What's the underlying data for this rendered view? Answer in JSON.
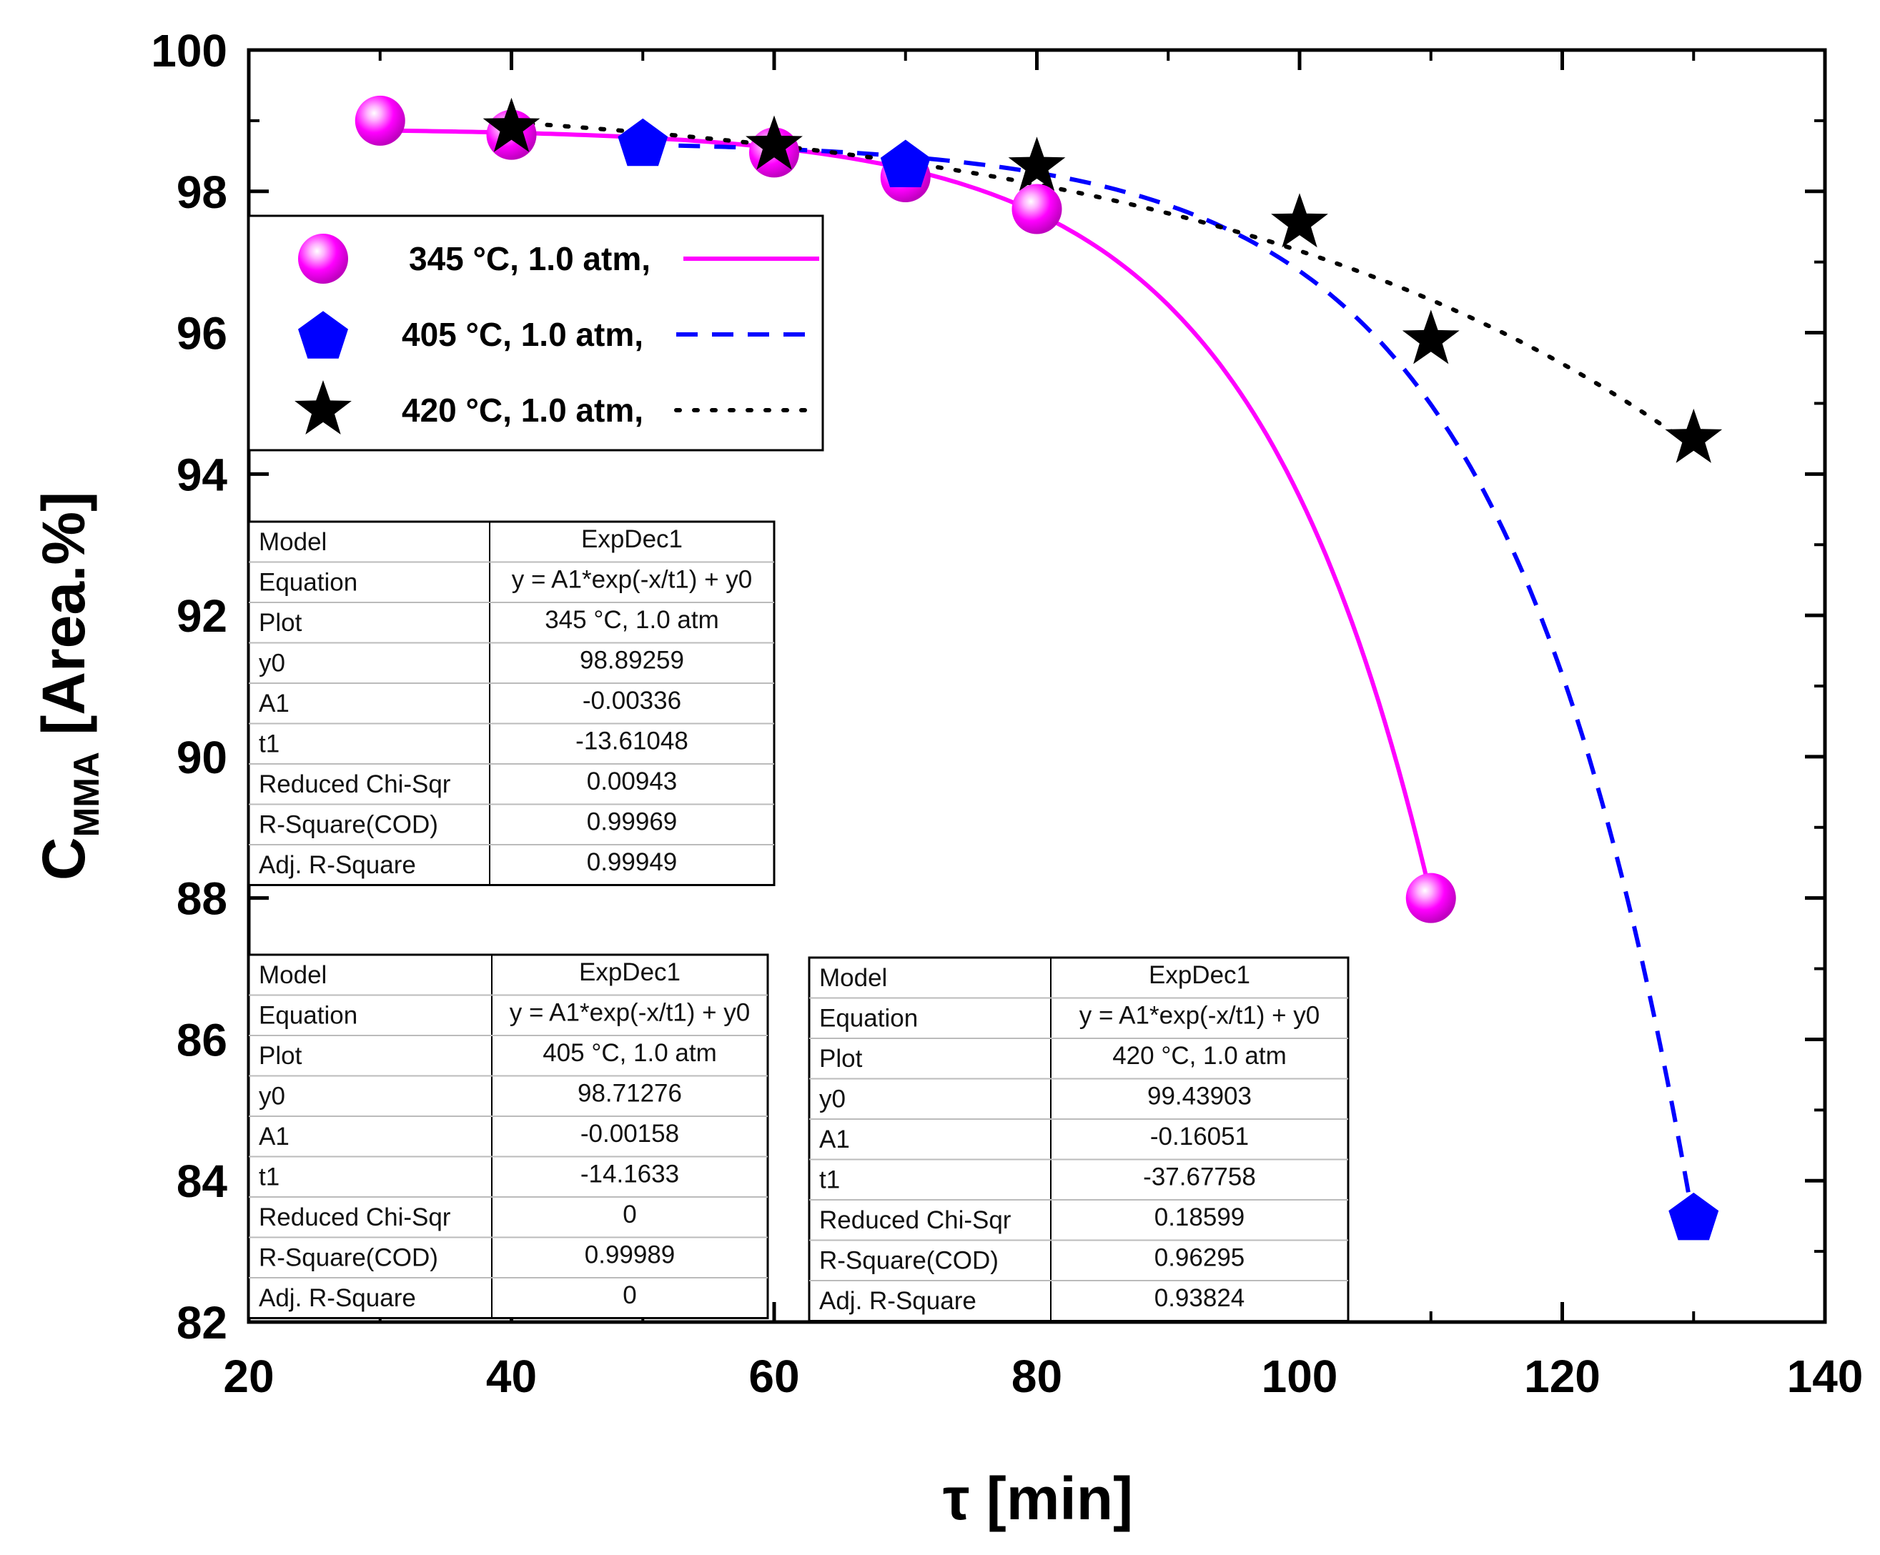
{
  "chart_data": {
    "type": "scatter",
    "xlabel": "τ [min]",
    "ylabel_main": "C",
    "ylabel_sub": "MMA",
    "ylabel_rest": " [Area.%]",
    "xlim": [
      20,
      140
    ],
    "ylim": [
      82,
      100
    ],
    "x_ticks": [
      20,
      40,
      60,
      80,
      100,
      120,
      140
    ],
    "y_ticks": [
      82,
      84,
      86,
      88,
      90,
      92,
      94,
      96,
      98,
      100
    ],
    "series": [
      {
        "name": "345 °C, 1.0 atm,",
        "marker": "sphere",
        "line": "solid",
        "color": "#ff00ff",
        "x": [
          30,
          40,
          60,
          70,
          80,
          110
        ],
        "y": [
          99.0,
          98.8,
          98.55,
          98.2,
          97.75,
          88.0
        ],
        "fit": {
          "y0": 98.89259,
          "A1": -0.00336,
          "t1": -13.61048
        }
      },
      {
        "name": "405 °C, 1.0 atm,",
        "marker": "pentagon",
        "line": "dashed",
        "color": "#0000ff",
        "x": [
          50,
          70,
          130
        ],
        "y": [
          98.7,
          98.4,
          83.5
        ],
        "fit": {
          "y0": 98.71276,
          "A1": -0.00158,
          "t1": -14.1633
        }
      },
      {
        "name": "420 °C, 1.0 atm,",
        "marker": "star",
        "line": "dotted",
        "color": "#000000",
        "x": [
          40,
          60,
          80,
          100,
          110,
          130
        ],
        "y": [
          98.9,
          98.65,
          98.35,
          97.55,
          95.9,
          94.5
        ],
        "fit": {
          "y0": 99.43903,
          "A1": -0.16051,
          "t1": -37.67758
        }
      }
    ],
    "legend_position": "top-left"
  },
  "fit_tables": [
    {
      "rows": [
        [
          "Model",
          "ExpDec1"
        ],
        [
          "Equation",
          "y = A1*exp(-x/t1) + y0"
        ],
        [
          "Plot",
          "345 °C, 1.0 atm"
        ],
        [
          "y0",
          "98.89259"
        ],
        [
          "A1",
          "-0.00336"
        ],
        [
          "t1",
          "-13.61048"
        ],
        [
          "Reduced Chi-Sqr",
          "0.00943"
        ],
        [
          "R-Square(COD)",
          "0.99969"
        ],
        [
          "Adj. R-Square",
          "0.99949"
        ]
      ]
    },
    {
      "rows": [
        [
          "Model",
          "ExpDec1"
        ],
        [
          "Equation",
          "y = A1*exp(-x/t1) + y0"
        ],
        [
          "Plot",
          "405 °C, 1.0 atm"
        ],
        [
          "y0",
          "98.71276"
        ],
        [
          "A1",
          "-0.00158"
        ],
        [
          "t1",
          "-14.1633"
        ],
        [
          "Reduced Chi-Sqr",
          "0"
        ],
        [
          "R-Square(COD)",
          "0.99989"
        ],
        [
          "Adj. R-Square",
          "0"
        ]
      ]
    },
    {
      "rows": [
        [
          "Model",
          "ExpDec1"
        ],
        [
          "Equation",
          "y = A1*exp(-x/t1) + y0"
        ],
        [
          "Plot",
          "420 °C, 1.0 atm"
        ],
        [
          "y0",
          "99.43903"
        ],
        [
          "A1",
          "-0.16051"
        ],
        [
          "t1",
          "-37.67758"
        ],
        [
          "Reduced Chi-Sqr",
          "0.18599"
        ],
        [
          "R-Square(COD)",
          "0.96295"
        ],
        [
          "Adj. R-Square",
          "0.93824"
        ]
      ]
    }
  ]
}
